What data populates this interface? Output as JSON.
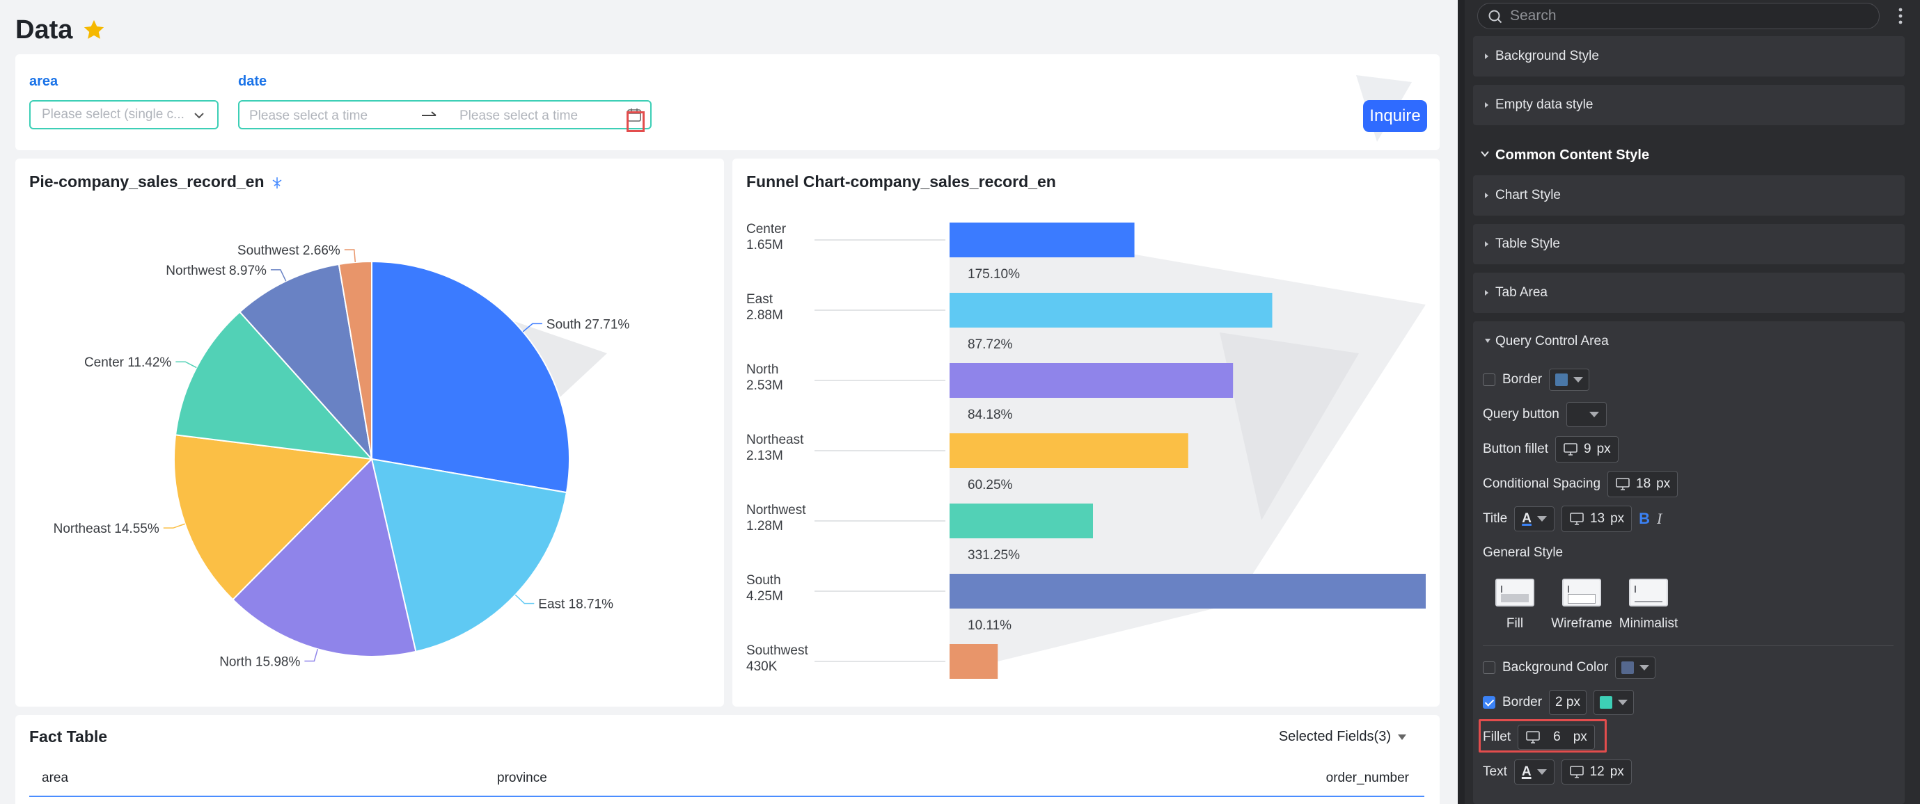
{
  "page": {
    "title": "Data"
  },
  "query": {
    "area_label": "area",
    "area_placeholder": "Please select (single c...",
    "date_label": "date",
    "date_from_placeholder": "Please select a time",
    "date_to_placeholder": "Please select a time",
    "inquire_label": "Inquire",
    "accent_color": "#3dcfb6",
    "button_color": "#2f6bff"
  },
  "pie": {
    "title": "Pie-company_sales_record_en",
    "chart_data": {
      "type": "pie",
      "title": "Pie-company_sales_record_en",
      "slices": [
        {
          "label": "South",
          "percent": 27.71,
          "display": "South 27.71%",
          "color": "#3b7bff"
        },
        {
          "label": "East",
          "percent": 18.71,
          "display": "East 18.71%",
          "color": "#5fc9f3"
        },
        {
          "label": "North",
          "percent": 15.98,
          "display": "North 15.98%",
          "color": "#8f84ea"
        },
        {
          "label": "Northeast",
          "percent": 14.55,
          "display": "Northeast 14.55%",
          "color": "#fbbf45"
        },
        {
          "label": "Center",
          "percent": 11.42,
          "display": "Center 11.42%",
          "color": "#52d1b6"
        },
        {
          "label": "Northwest",
          "percent": 8.97,
          "display": "Northwest 8.97%",
          "color": "#6982c4"
        },
        {
          "label": "Southwest",
          "percent": 2.66,
          "display": "Southwest 2.66%",
          "color": "#e8956a"
        }
      ]
    }
  },
  "funnel": {
    "title": "Funnel Chart-company_sales_record_en",
    "chart_data": {
      "type": "bar",
      "title": "Funnel Chart-company_sales_record_en",
      "categories": [
        "Center",
        "East",
        "North",
        "Northeast",
        "Northwest",
        "South",
        "Southwest"
      ],
      "values": [
        1.65,
        2.88,
        2.53,
        2.13,
        1.28,
        4.25,
        0.43
      ],
      "value_labels": [
        "1.65M",
        "2.88M",
        "2.53M",
        "2.13M",
        "1.28M",
        "4.25M",
        "430K"
      ],
      "conversion_labels": [
        "175.10%",
        "87.72%",
        "84.18%",
        "60.25%",
        "331.25%",
        "10.11%",
        ""
      ],
      "colors": [
        "#3b7bff",
        "#5fc9f3",
        "#8f84ea",
        "#fbbf45",
        "#52d1b6",
        "#6982c4",
        "#e8956a"
      ],
      "unit": "M"
    }
  },
  "table": {
    "title": "Fact Table",
    "selected_fields": "Selected Fields(3)",
    "columns": [
      "area",
      "province",
      "order_number"
    ]
  },
  "panel": {
    "search_placeholder": "Search",
    "sections": [
      "Background Style",
      "Empty data style"
    ],
    "common_content_style": "Common Content Style",
    "sub_sections": [
      "Chart Style",
      "Table Style",
      "Tab Area"
    ],
    "query_control_area": "Query Control Area",
    "border_label": "Border",
    "border_color": "#4a78a8",
    "query_button_label": "Query button",
    "button_fillet_label": "Button fillet",
    "button_fillet_value": "9",
    "conditional_spacing_label": "Conditional Spacing",
    "conditional_spacing_value": "18",
    "title_label": "Title",
    "title_size_value": "13",
    "bold_glyph": "B",
    "italic_glyph": "I",
    "a_glyph": "A",
    "px_unit": "px",
    "general_style_label": "General Style",
    "style_options": [
      "Fill",
      "Wireframe",
      "Minimalist"
    ],
    "background_color_label": "Background Color",
    "background_color_swatch": "#55688e",
    "border2_label": "Border",
    "border2_value": "2 px",
    "border2_color": "#3dcfb6",
    "fillet_label": "Fillet",
    "fillet_value": "6",
    "text_label": "Text",
    "text_size_value": "12"
  }
}
